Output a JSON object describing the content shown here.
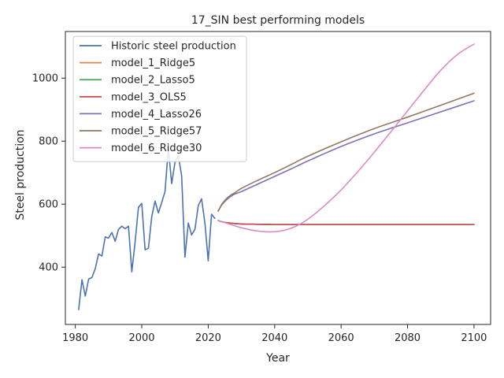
{
  "chart_data": {
    "type": "line",
    "title": "17_SIN best performing models",
    "xlabel": "Year",
    "ylabel": "Steel production",
    "xlim": [
      1977,
      2105
    ],
    "ylim": [
      218,
      1148
    ],
    "xticks": [
      1980,
      2000,
      2020,
      2040,
      2060,
      2080,
      2100
    ],
    "yticks": [
      400,
      600,
      800,
      1000
    ],
    "grid": false,
    "legend": "top-left",
    "series": [
      {
        "name": "Historic steel production",
        "color": "#4c72b0",
        "x": [
          1981,
          1982,
          1983,
          1984,
          1985,
          1986,
          1987,
          1988,
          1989,
          1990,
          1991,
          1992,
          1993,
          1994,
          1995,
          1996,
          1997,
          1998,
          1999,
          2000,
          2001,
          2002,
          2003,
          2004,
          2005,
          2006,
          2007,
          2008,
          2009,
          2010,
          2011,
          2012,
          2013,
          2014,
          2015,
          2016,
          2017,
          2018,
          2019,
          2020,
          2021,
          2022
        ],
        "y": [
          265,
          360,
          308,
          362,
          367,
          395,
          442,
          435,
          496,
          492,
          510,
          482,
          520,
          530,
          522,
          530,
          385,
          480,
          590,
          602,
          455,
          460,
          560,
          610,
          572,
          605,
          640,
          778,
          665,
          733,
          755,
          690,
          432,
          540,
          502,
          520,
          595,
          617,
          540,
          420,
          568,
          555
        ]
      },
      {
        "name": "model_1_Ridge5",
        "color": "#dd8452",
        "x": [
          2023,
          2025,
          2030,
          2035,
          2040,
          2050,
          2060,
          2070,
          2080,
          2090,
          2100
        ],
        "y": [
          548,
          542,
          537,
          536,
          535,
          535,
          535,
          535,
          535,
          535,
          535
        ]
      },
      {
        "name": "model_2_Lasso5",
        "color": "#55a868",
        "x": [
          2023,
          2025,
          2030,
          2035,
          2040,
          2050,
          2060,
          2070,
          2080,
          2090,
          2100
        ],
        "y": [
          548,
          542,
          537,
          536,
          535,
          535,
          535,
          535,
          535,
          535,
          535
        ]
      },
      {
        "name": "model_3_OLS5",
        "color": "#c44e52",
        "x": [
          2023,
          2025,
          2030,
          2035,
          2040,
          2050,
          2060,
          2070,
          2080,
          2090,
          2100
        ],
        "y": [
          548,
          542,
          537,
          536,
          535,
          535,
          535,
          535,
          535,
          535,
          535
        ]
      },
      {
        "name": "model_4_Lasso26",
        "color": "#8172b3",
        "x": [
          2023,
          2024,
          2025,
          2026,
          2027,
          2028,
          2030,
          2035,
          2040,
          2045,
          2050,
          2060,
          2070,
          2080,
          2090,
          2100
        ],
        "y": [
          578,
          596,
          608,
          618,
          626,
          632,
          640,
          664,
          688,
          712,
          737,
          783,
          823,
          858,
          893,
          928
        ]
      },
      {
        "name": "model_5_Ridge57",
        "color": "#937860",
        "x": [
          2023,
          2024,
          2025,
          2026,
          2027,
          2028,
          2030,
          2035,
          2040,
          2045,
          2050,
          2060,
          2070,
          2080,
          2090,
          2100
        ],
        "y": [
          578,
          598,
          612,
          622,
          630,
          636,
          650,
          676,
          700,
          726,
          752,
          798,
          840,
          876,
          914,
          952
        ]
      },
      {
        "name": "model_6_Ridge30",
        "color": "#da8bc3",
        "x": [
          2023,
          2026,
          2030,
          2034,
          2038,
          2042,
          2046,
          2050,
          2055,
          2060,
          2065,
          2070,
          2075,
          2080,
          2085,
          2090,
          2095,
          2100
        ],
        "y": [
          548,
          538,
          525,
          516,
          512,
          515,
          528,
          552,
          595,
          645,
          703,
          765,
          830,
          896,
          962,
          1025,
          1075,
          1108
        ]
      }
    ]
  }
}
